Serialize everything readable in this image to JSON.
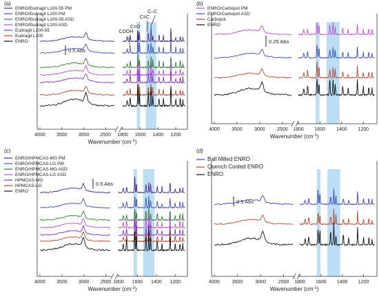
{
  "chart_data": [
    {
      "type": "line",
      "panel_label": "(a)",
      "xlabel": "Wavenumber (cm",
      "xlabel_sup": "-1",
      "xlabel_tail": ")",
      "x_axis_break": true,
      "left_segment": {
        "xlim": [
          4000,
          2300
        ],
        "ticks": [
          "4000",
          "3500",
          "3000",
          "2500"
        ]
      },
      "right_segment": {
        "xlim": [
          1800,
          1100
        ],
        "ticks": [
          "1800",
          "1600",
          "1400",
          "1200"
        ]
      },
      "shaded_bands_cm-1": [
        [
          1640,
          1605
        ],
        [
          1540,
          1420
        ]
      ],
      "scale_bar": "0.5 Abs",
      "annotations": [
        "COOH",
        "C=O",
        "C=C",
        "C–C"
      ],
      "legend_placement": "top-left",
      "series": [
        {
          "name": "ENRO/Eudragit L100-55 PM",
          "color": "#4b2a8c"
        },
        {
          "name": "ENRO/Eudragit L100 PM",
          "color": "#3c4fc0"
        },
        {
          "name": "ENRO/Eudragit L100-55 ASD",
          "color": "#2e7d2e"
        },
        {
          "name": "ENRO/Eudragit L100 ASD",
          "color": "#c04fd4"
        },
        {
          "name": "Eudragit L100-55",
          "color": "#7f33c9"
        },
        {
          "name": "Eudragit L100",
          "color": "#b5452c"
        },
        {
          "name": "ENRO",
          "color": "#111111"
        }
      ]
    },
    {
      "type": "line",
      "panel_label": "(b)",
      "xlabel": "Wavenumber (cm",
      "xlabel_sup": "-1",
      "xlabel_tail": ")",
      "x_axis_break": true,
      "left_segment": {
        "xlim": [
          4000,
          2300
        ],
        "ticks": [
          "4000",
          "3500",
          "3000",
          "2500"
        ]
      },
      "right_segment": {
        "xlim": [
          1800,
          1100
        ],
        "ticks": [
          "1800",
          "1600",
          "1400",
          "1200"
        ]
      },
      "shaded_bands_cm-1": [
        [
          1640,
          1605
        ],
        [
          1540,
          1420
        ]
      ],
      "scale_bar": "0.25 Abs",
      "legend_placement": "top-left",
      "series": [
        {
          "name": "ENRO/Carbopol PM",
          "color": "#c04fd4"
        },
        {
          "name": "ENRO/Carbopol ASD",
          "color": "#3c4fc0"
        },
        {
          "name": "Carbopol",
          "color": "#b5452c"
        },
        {
          "name": "ENRO",
          "color": "#111111"
        }
      ]
    },
    {
      "type": "line",
      "panel_label": "(c)",
      "xlabel": "Wavenumber (cm",
      "xlabel_sup": "-1",
      "xlabel_tail": ")",
      "x_axis_break": true,
      "left_segment": {
        "xlim": [
          4000,
          2400
        ],
        "ticks": [
          "4000",
          "3500",
          "3000",
          "2500"
        ]
      },
      "right_segment": {
        "xlim": [
          1800,
          1100
        ],
        "ticks": [
          "1800",
          "1600",
          "1400",
          "1200"
        ]
      },
      "shaded_bands_cm-1": [
        [
          1640,
          1605
        ],
        [
          1540,
          1420
        ]
      ],
      "scale_bar": "0.5 Abs",
      "legend_placement": "top-left",
      "series": [
        {
          "name": "ENRO/HPMCAS-MG PM",
          "color": "#4b2a8c"
        },
        {
          "name": "ENRO/HPMCAS-LG PM",
          "color": "#3c4fc0"
        },
        {
          "name": "ENRO/HPMCAS-MG ASD",
          "color": "#2e7d2e"
        },
        {
          "name": "ENRO/HPMCAS-LG ASD",
          "color": "#c04fd4"
        },
        {
          "name": "HPMCAS-MG",
          "color": "#7f33c9"
        },
        {
          "name": "HPMCAS-LG",
          "color": "#b5452c"
        },
        {
          "name": "ENRO",
          "color": "#111111"
        }
      ]
    },
    {
      "type": "line",
      "panel_label": "(d)",
      "xlabel": "Wavenumber (cm",
      "xlabel_sup": "-1",
      "xlabel_tail": ")",
      "x_axis_break": true,
      "left_segment": {
        "xlim": [
          4000,
          2300
        ],
        "ticks": [
          "4000",
          "3500",
          "3000",
          "2500"
        ]
      },
      "right_segment": {
        "xlim": [
          1800,
          1100
        ],
        "ticks": [
          "1800",
          "1600",
          "1400",
          "1200"
        ]
      },
      "shaded_bands_cm-1": [
        [
          1640,
          1605
        ],
        [
          1540,
          1420
        ]
      ],
      "scale_bar": "0.5 Abs",
      "legend_placement": "top-left",
      "series": [
        {
          "name": "Ball Milled ENRO",
          "color": "#3c3fc4"
        },
        {
          "name": "Quench Cooled ENRO",
          "color": "#b5452c"
        },
        {
          "name": "ENRO",
          "color": "#111111"
        }
      ]
    }
  ]
}
